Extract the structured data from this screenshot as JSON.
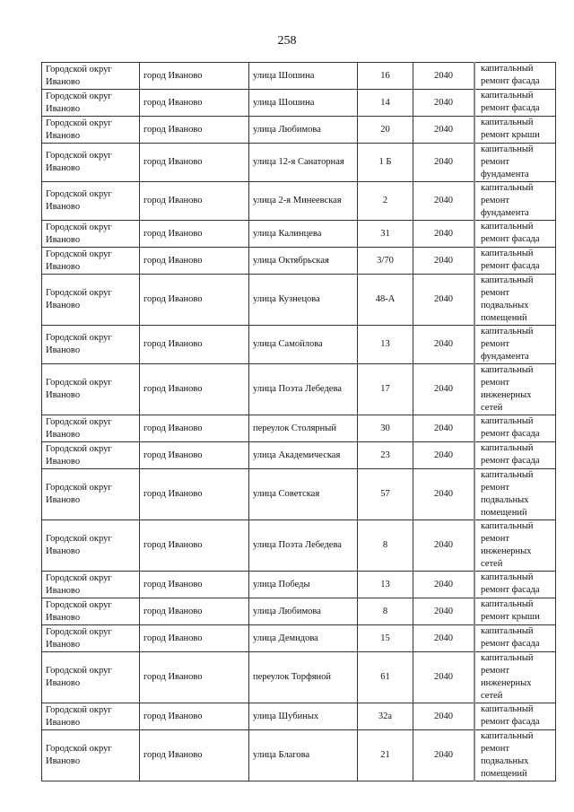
{
  "page_number": "258",
  "rows": [
    {
      "district": "Городской округ Иваново",
      "city": "город Иваново",
      "street": "улица Шошина",
      "house": "16",
      "year": "2040",
      "work": "капитальный ремонт фасада"
    },
    {
      "district": "Городской округ Иваново",
      "city": "город Иваново",
      "street": "улица Шошина",
      "house": "14",
      "year": "2040",
      "work": "капитальный ремонт фасада"
    },
    {
      "district": "Городской округ Иваново",
      "city": "город Иваново",
      "street": "улица Любимова",
      "house": "20",
      "year": "2040",
      "work": "капитальный ремонт крыши"
    },
    {
      "district": "Городской округ Иваново",
      "city": "город Иваново",
      "street": "улица 12-я Санаторная",
      "house": "1 Б",
      "year": "2040",
      "work": "капитальный ремонт фундамента"
    },
    {
      "district": "Городской округ Иваново",
      "city": "город Иваново",
      "street": "улица 2-я Минеевская",
      "house": "2",
      "year": "2040",
      "work": "капитальный ремонт фундамента"
    },
    {
      "district": "Городской округ Иваново",
      "city": "город Иваново",
      "street": "улица Калинцева",
      "house": "31",
      "year": "2040",
      "work": "капитальный ремонт фасада"
    },
    {
      "district": "Городской округ Иваново",
      "city": "город Иваново",
      "street": "улица Октябрьская",
      "house": "3/70",
      "year": "2040",
      "work": "капитальный ремонт фасада"
    },
    {
      "district": "Городской округ Иваново",
      "city": "город Иваново",
      "street": "улица Кузнецова",
      "house": "48-А",
      "year": "2040",
      "work": "капитальный ремонт подвальных помещений"
    },
    {
      "district": "Городской округ Иваново",
      "city": "город Иваново",
      "street": "улица Самойлова",
      "house": "13",
      "year": "2040",
      "work": "капитальный ремонт фундамента"
    },
    {
      "district": "Городской округ Иваново",
      "city": "город Иваново",
      "street": "улица Поэта Лебедева",
      "house": "17",
      "year": "2040",
      "work": "капитальный ремонт инженерных сетей"
    },
    {
      "district": "Городской округ Иваново",
      "city": "город Иваново",
      "street": "переулок Столярный",
      "house": "30",
      "year": "2040",
      "work": "капитальный ремонт фасада"
    },
    {
      "district": "Городской округ Иваново",
      "city": "город Иваново",
      "street": "улица Академическая",
      "house": "23",
      "year": "2040",
      "work": "капитальный ремонт фасада"
    },
    {
      "district": "Городской округ Иваново",
      "city": "город Иваново",
      "street": "улица Советская",
      "house": "57",
      "year": "2040",
      "work": "капитальный ремонт подвальных помещений"
    },
    {
      "district": "Городской округ Иваново",
      "city": "город Иваново",
      "street": "улица Поэта Лебедева",
      "house": "8",
      "year": "2040",
      "work": "капитальный ремонт инженерных сетей"
    },
    {
      "district": "Городской округ Иваново",
      "city": "город Иваново",
      "street": "улица Победы",
      "house": "13",
      "year": "2040",
      "work": "капитальный ремонт фасада"
    },
    {
      "district": "Городской округ Иваново",
      "city": "город Иваново",
      "street": "улица Любимова",
      "house": "8",
      "year": "2040",
      "work": "капитальный ремонт крыши"
    },
    {
      "district": "Городской округ Иваново",
      "city": "город Иваново",
      "street": "улица Демидова",
      "house": "15",
      "year": "2040",
      "work": "капитальный ремонт фасада"
    },
    {
      "district": "Городской округ Иваново",
      "city": "город Иваново",
      "street": "переулок Торфяной",
      "house": "61",
      "year": "2040",
      "work": "капитальный ремонт инженерных сетей"
    },
    {
      "district": "Городской округ Иваново",
      "city": "город Иваново",
      "street": "улица Шубиных",
      "house": "32а",
      "year": "2040",
      "work": "капитальный ремонт фасада"
    },
    {
      "district": "Городской округ Иваново",
      "city": "город Иваново",
      "street": "улица Благова",
      "house": "21",
      "year": "2040",
      "work": "капитальный ремонт подвальных помещений"
    }
  ]
}
